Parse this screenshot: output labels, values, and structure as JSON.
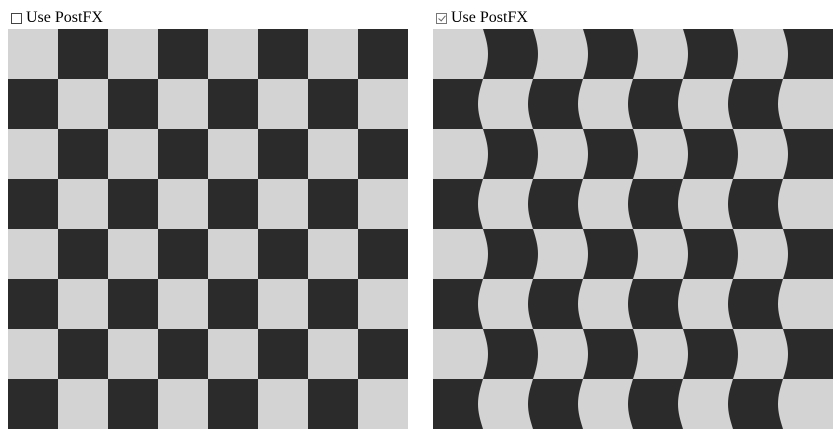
{
  "panels": [
    {
      "checkbox_label": "Use PostFX",
      "checked": false
    },
    {
      "checkbox_label": "Use PostFX",
      "checked": true
    }
  ],
  "board": {
    "rows": 8,
    "cols": 8,
    "colors": {
      "light": "#d3d3d3",
      "dark": "#2b2b2b"
    }
  }
}
